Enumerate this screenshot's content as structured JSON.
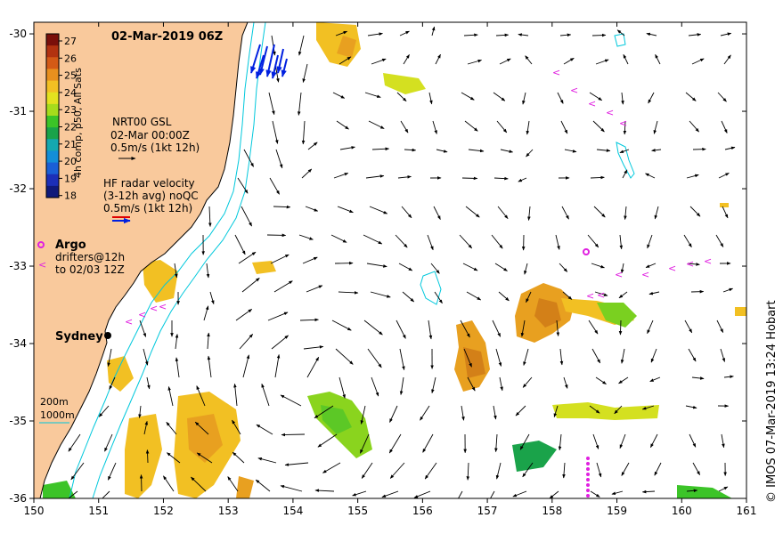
{
  "title": "02-Mar-2019 06Z",
  "credit": "© IMOS 07-Mar-2019 13:24 Hobart",
  "sst_label": "4h comp, p50, All Sats",
  "colorbar": {
    "ticks": [
      "27",
      "26",
      "25",
      "24",
      "23",
      "22",
      "21",
      "20",
      "19",
      "18"
    ],
    "colors": [
      "#7a0f0a",
      "#b23210",
      "#d35a16",
      "#e8901e",
      "#f2c023",
      "#e3e21f",
      "#a6dc1c",
      "#3cc428",
      "#1aa34a",
      "#14a8b0",
      "#138ed8",
      "#1a5fd6",
      "#1c2fb8",
      "#101a7a"
    ]
  },
  "x_axis": {
    "ticks": [
      "150",
      "151",
      "152",
      "153",
      "154",
      "155",
      "156",
      "157",
      "158",
      "159",
      "160",
      "161"
    ],
    "range": [
      150,
      161
    ]
  },
  "y_axis": {
    "ticks": [
      "-30",
      "-31",
      "-32",
      "-33",
      "-34",
      "-35",
      "-36"
    ],
    "range": [
      -36,
      -29.85
    ]
  },
  "legend": {
    "gsl_title": "NRT00 GSL",
    "gsl_date": "02-Mar 00:00Z",
    "gsl_scale": "0.5m/s (1kt 12h)",
    "hf_title": "HF radar velocity",
    "hf_sub": "(3-12h avg) noQC",
    "hf_scale": "0.5m/s (1kt 12h)",
    "argo_label": "Argo",
    "drifters_line1": "drifters@12h",
    "drifters_line2": "to 02/03 12Z",
    "contour_200": "200m",
    "contour_1000": "1000m"
  },
  "city": {
    "name": "Sydney",
    "lon": 151.2,
    "lat": -33.87
  },
  "colors": {
    "land": "#f9c99c",
    "contour": "#00c8dc",
    "drifter": "#e020e0",
    "hf_arrow": "#0020e0",
    "hf_arrow_red": "#e00000",
    "arrow": "#000000"
  }
}
